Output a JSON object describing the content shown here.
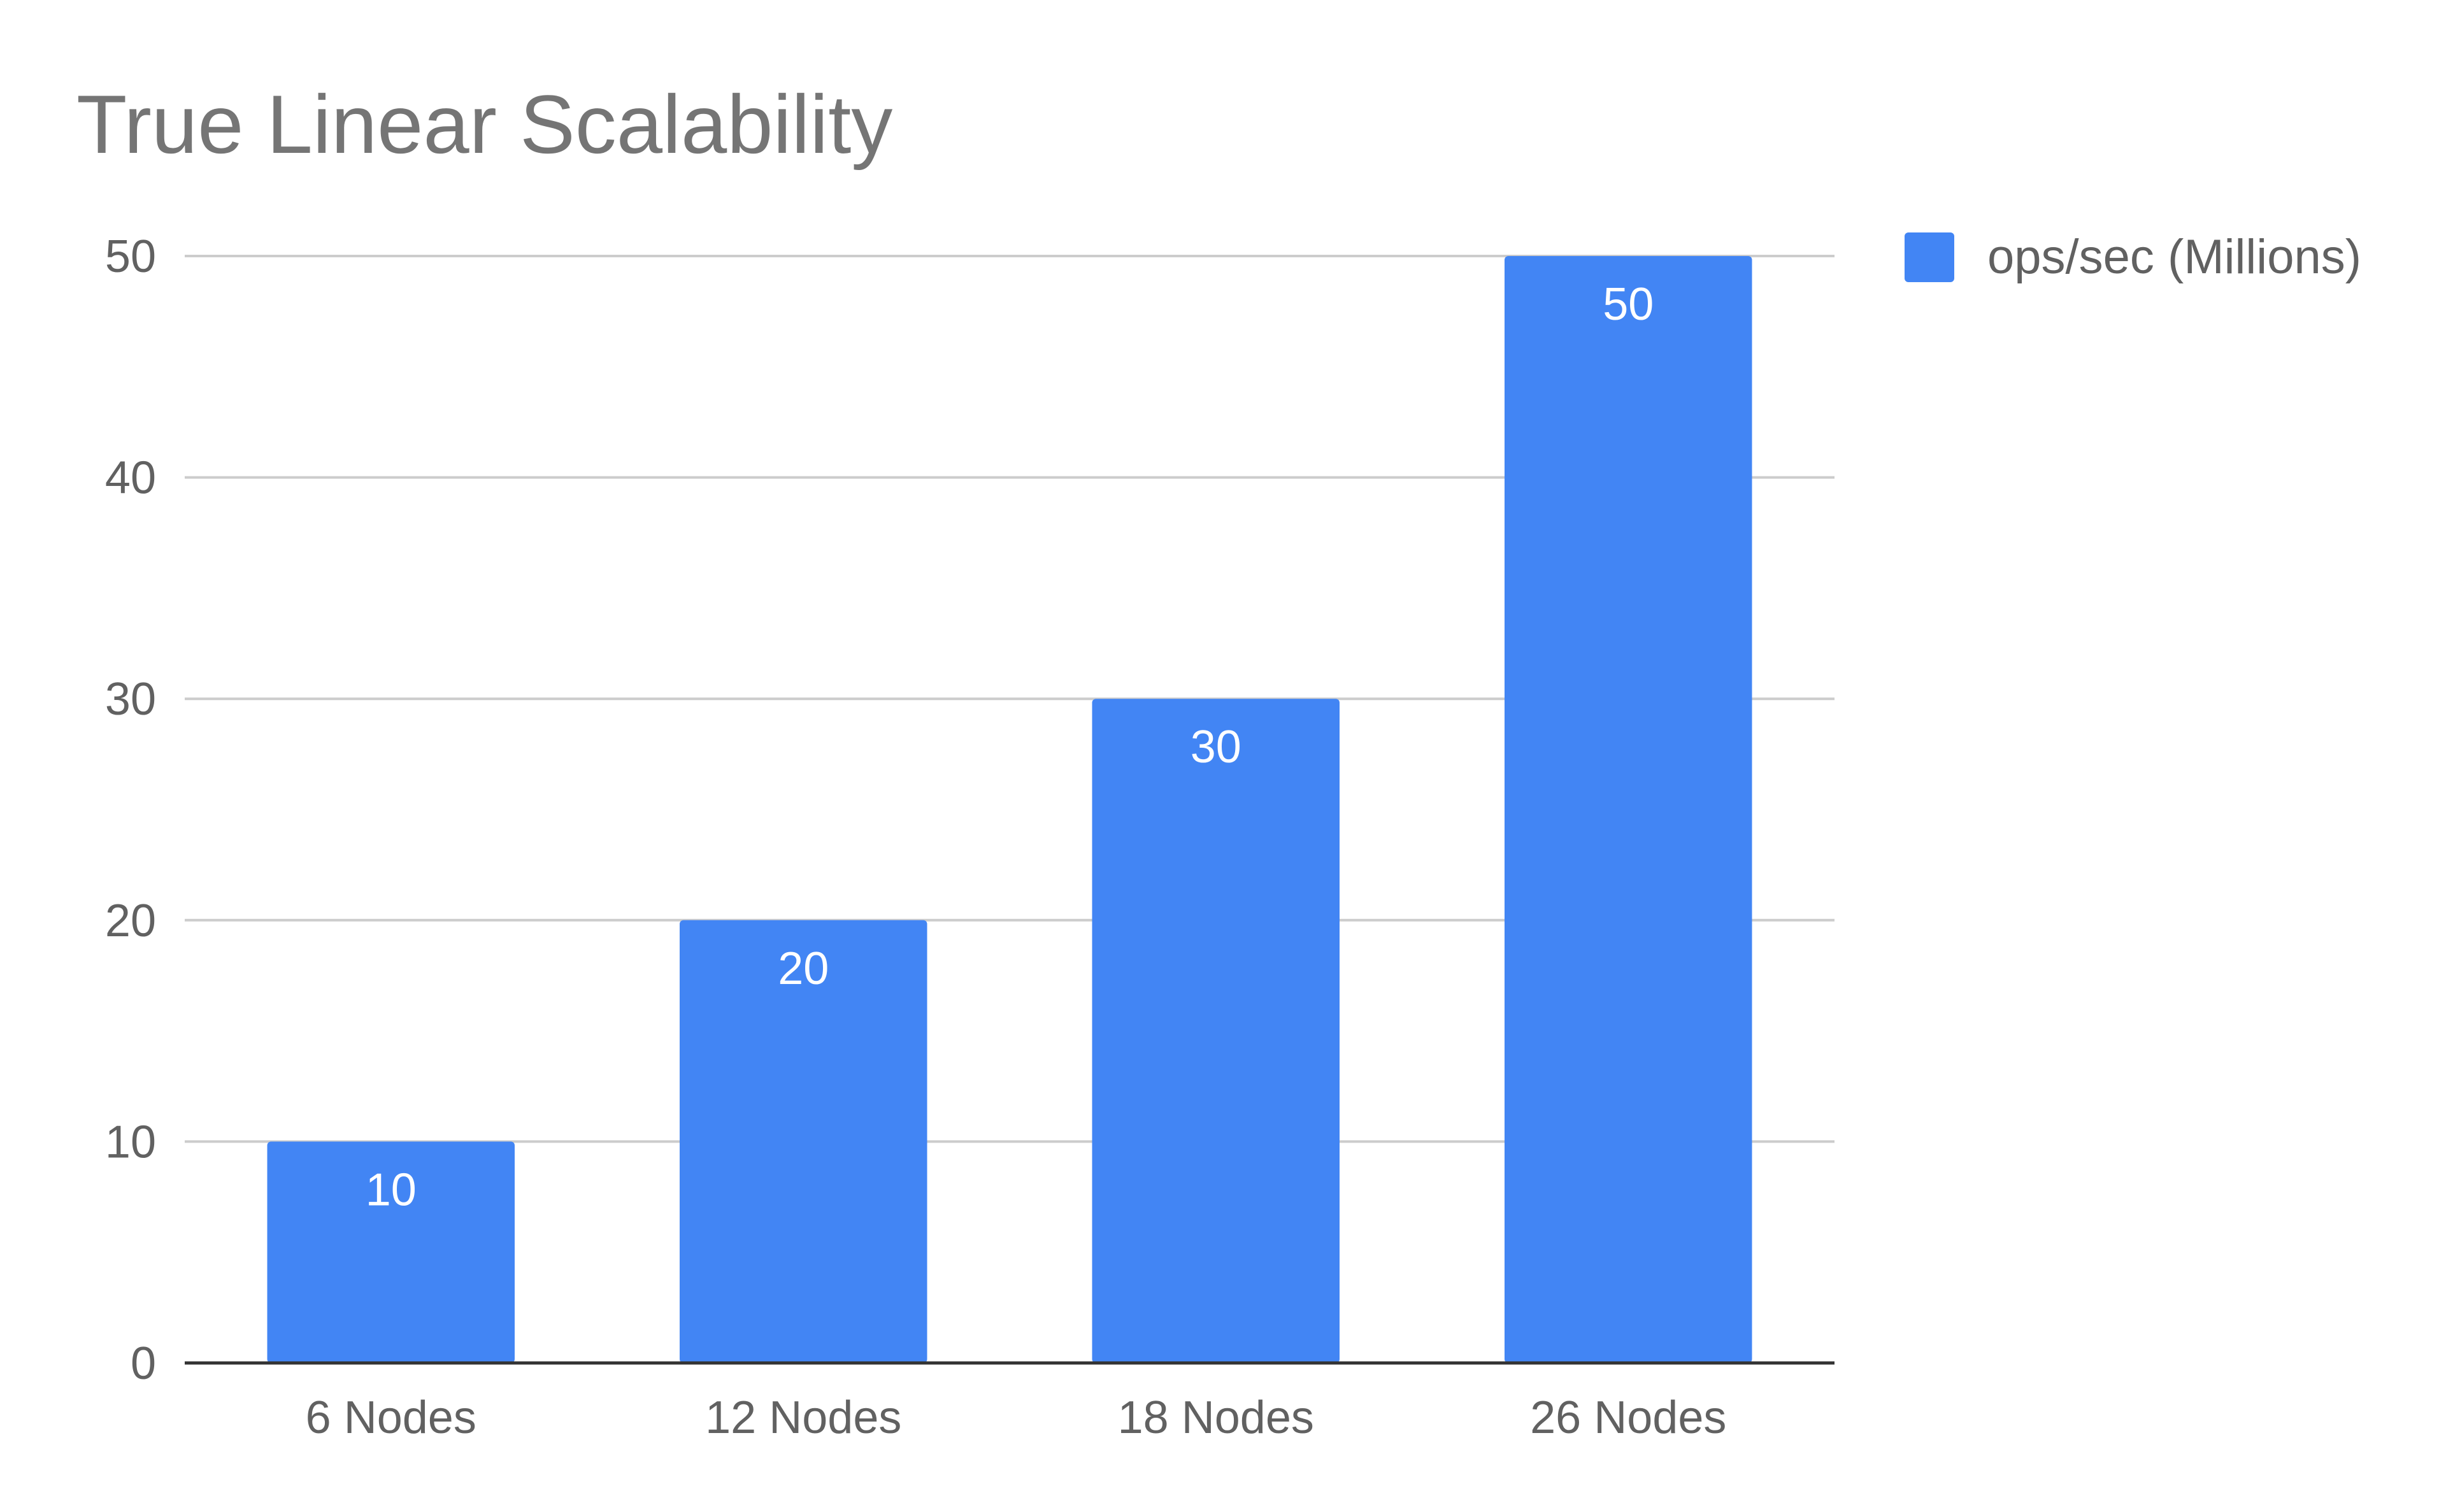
{
  "chart_data": {
    "type": "bar",
    "title": "True Linear Scalability",
    "categories": [
      "6 Nodes",
      "12 Nodes",
      "18 Nodes",
      "26 Nodes"
    ],
    "series": [
      {
        "name": "ops/sec (Millions)",
        "values": [
          10,
          20,
          30,
          50
        ],
        "color": "#4285F4"
      }
    ],
    "xlabel": "",
    "ylabel": "",
    "ylim": [
      0,
      50
    ],
    "yticks": [
      0,
      10,
      20,
      30,
      40,
      50
    ],
    "data_labels": true,
    "grid": true,
    "legend_position": "right"
  }
}
